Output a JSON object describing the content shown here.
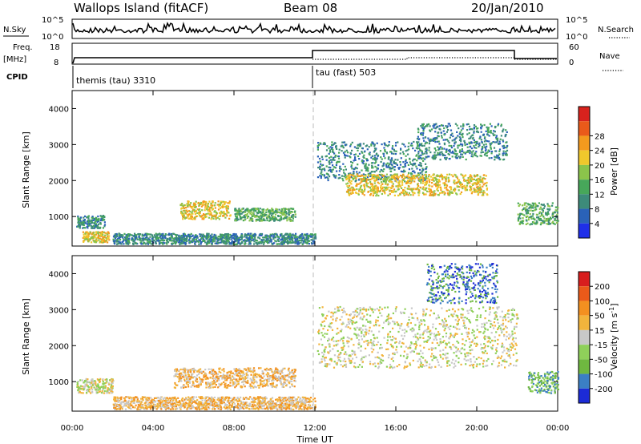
{
  "header": {
    "station": "Wallops Island (fitACF)",
    "beam": "Beam 08",
    "date": "20/Jan/2010"
  },
  "top_panels": {
    "nsky_label": "N.Sky",
    "nsky_ticks": [
      "10^5",
      "10^0"
    ],
    "nsearch_label": "N.Search",
    "nsearch_ticks": [
      "10^5",
      "10^0"
    ],
    "freq_label": "Freq.",
    "freq_unit": "[MHz]",
    "freq_ticks": [
      "18",
      "8"
    ],
    "nave_label": "Nave",
    "nave_ticks": [
      "60",
      "0"
    ],
    "cpid_label": "CPID",
    "cpid_segments": [
      {
        "name": "themis (tau) 3310",
        "start_h": 0,
        "end_h": 12
      },
      {
        "name": "tau (fast) 503",
        "start_h": 12,
        "end_h": 24
      }
    ]
  },
  "chart_data": [
    {
      "type": "heatmap",
      "title": "",
      "ylabel": "Slant Range [km]",
      "xlabel": "",
      "xlim": [
        0,
        24
      ],
      "ylim": [
        180,
        4500
      ],
      "yticks": [
        "1000",
        "2000",
        "3000",
        "4000"
      ],
      "colorbar": {
        "label": "Power [dB]",
        "ticks": [
          "4",
          "8",
          "12",
          "16",
          "20",
          "24",
          "28"
        ],
        "colors": [
          "#1f2fe8",
          "#2a62b8",
          "#3d8b7a",
          "#47a75a",
          "#8bc44b",
          "#f0c82c",
          "#f39a1e",
          "#ea5a1a",
          "#d8221d"
        ]
      },
      "scatter_regions": [
        {
          "t": [
            0.2,
            1.6
          ],
          "r": [
            700,
            1050
          ],
          "level": 2
        },
        {
          "t": [
            0.5,
            1.8
          ],
          "r": [
            300,
            600
          ],
          "level": 5
        },
        {
          "t": [
            5.3,
            7.8
          ],
          "r": [
            950,
            1450
          ],
          "level": 5
        },
        {
          "t": [
            8.0,
            11.0
          ],
          "r": [
            900,
            1250
          ],
          "level": 3
        },
        {
          "t": [
            2.0,
            12.0
          ],
          "r": [
            250,
            550
          ],
          "level": 2
        },
        {
          "t": [
            12.1,
            17.5
          ],
          "r": [
            2000,
            3100
          ],
          "level": 2
        },
        {
          "t": [
            13.5,
            20.5
          ],
          "r": [
            1600,
            2200
          ],
          "level": 5
        },
        {
          "t": [
            17.0,
            21.5
          ],
          "r": [
            2600,
            3600
          ],
          "level": 2
        },
        {
          "t": [
            22.0,
            24.0
          ],
          "r": [
            800,
            1400
          ],
          "level": 3
        }
      ]
    },
    {
      "type": "heatmap",
      "title": "",
      "ylabel": "Slant Range [km]",
      "xlabel": "Time UT",
      "xlim": [
        0,
        24
      ],
      "ylim": [
        180,
        4500
      ],
      "yticks": [
        "1000",
        "2000",
        "3000",
        "4000"
      ],
      "xticks": [
        "00:00",
        "04:00",
        "08:00",
        "12:00",
        "16:00",
        "20:00",
        "00:00"
      ],
      "colorbar": {
        "label": "Velocity [m s",
        "label_sup": "-1",
        "label_close": "]",
        "ticks": [
          "200",
          "100",
          "50",
          "15",
          "-15",
          "-50",
          "-100",
          "-200"
        ],
        "colors": [
          "#1c2bd6",
          "#3b7fc4",
          "#6fb840",
          "#8fd05a",
          "#c8c8c8",
          "#f2b43c",
          "#f39020",
          "#ea5a1a",
          "#d81e1e"
        ]
      },
      "scatter_regions": [
        {
          "t": [
            0.2,
            2.0
          ],
          "r": [
            700,
            1100
          ],
          "level": 4
        },
        {
          "t": [
            5.0,
            11.0
          ],
          "r": [
            850,
            1400
          ],
          "level": 5
        },
        {
          "t": [
            2.0,
            12.0
          ],
          "r": [
            250,
            600
          ],
          "level": 5
        },
        {
          "t": [
            12.1,
            22.0
          ],
          "r": [
            1400,
            3100
          ],
          "level": 4
        },
        {
          "t": [
            17.5,
            21.0
          ],
          "r": [
            3200,
            4300
          ],
          "level": 1
        },
        {
          "t": [
            22.5,
            24.0
          ],
          "r": [
            700,
            1300
          ],
          "level": 2
        }
      ]
    }
  ]
}
